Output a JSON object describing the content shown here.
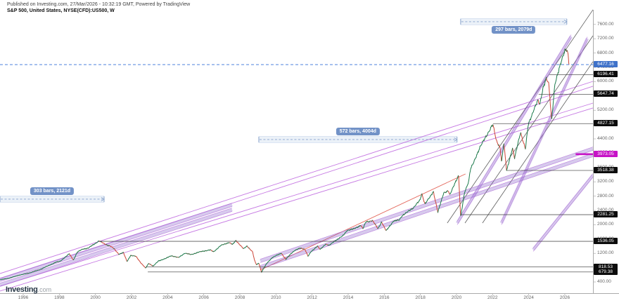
{
  "header": {
    "published_line": "Published on Investing.com, 27/Mar/2026 - 10:32:19 GMT, Powered by TradingView",
    "symbol_line": "S&P 500, United States, NYSE(CFD):US500, W"
  },
  "logo": {
    "brand": "Investing",
    "suffix": ".com"
  },
  "colors": {
    "current_badge_bg": "#3f72c9",
    "level_badge_bg": "#0c0c0c",
    "magenta": "#c613c6",
    "band_fill": "rgba(130,90,200,0.32)",
    "band_edge": "#b06fd8",
    "violet_line": "#c06ae0",
    "dark_line": "#4a4a4a",
    "red_line": "#e05548",
    "up": "#1b7a4b",
    "down": "#cc4437",
    "current_line": "#4d82dd",
    "measure_blue": "#8aa4cc",
    "measure_fill": "rgba(133,166,214,0.16)",
    "axis": "#aaaaaa",
    "ray": "#3a3a3a"
  },
  "chart_data": {
    "type": "line",
    "title": "S&P 500, United States, NYSE(CFD):US500, W",
    "symbol": "NYSE(CFD):US500",
    "interval": "W",
    "current_price": 6477.16,
    "x_axis": {
      "tick_years": [
        1996,
        1998,
        2000,
        2002,
        2004,
        2006,
        2008,
        2010,
        2012,
        2014,
        2016,
        2018,
        2020,
        2022,
        2024,
        2026
      ]
    },
    "y_axis": {
      "min": 400,
      "max": 7600,
      "tick_step": 400,
      "grid": false
    },
    "price_badges": [
      {
        "text": "6477.16",
        "price": 6477.16,
        "kind": "current"
      },
      {
        "text": "6196.41",
        "price": 6196.41,
        "kind": "level",
        "ray_start_year": 2025.15
      },
      {
        "text": "5647.74",
        "price": 5647.74,
        "kind": "level",
        "ray_start_year": 2024.55
      },
      {
        "text": "4827.15",
        "price": 4827.15,
        "kind": "level",
        "ray_start_year": 2022.02
      },
      {
        "text": "3973.05",
        "price": 3973.05,
        "kind": "magenta",
        "ray_start_year": 2026.6
      },
      {
        "text": "3518.38",
        "price": 3518.38,
        "kind": "level",
        "ray_start_year": 2022.8
      },
      {
        "text": "2281.25",
        "price": 2281.25,
        "kind": "level",
        "ray_start_year": 2020.2
      },
      {
        "text": "1536.05",
        "price": 1536.05,
        "kind": "level",
        "ray_start_year": 2000.3
      },
      {
        "text": "818.53",
        "price": 818.53,
        "kind": "level",
        "ray_start_year": 2002.8
      },
      {
        "text": "679.38",
        "price": 679.38,
        "kind": "level",
        "ray_start_year": 2002.9
      }
    ],
    "measures": [
      {
        "label": "303 bars, 2121d",
        "start_year": 1994.714,
        "end_year": 2000.48,
        "price": 2714,
        "label_side": "above"
      },
      {
        "label": "572 bars, 4004d",
        "start_year": 2009.05,
        "end_year": 2020.03,
        "price": 4381,
        "label_side": "above"
      },
      {
        "label": "297 bars, 2079d",
        "start_year": 2020.23,
        "end_year": 2026.11,
        "price": 7676,
        "label_side": "below"
      }
    ],
    "trendlines": [
      {
        "color": "violet",
        "x1": 1994.714,
        "p1": 635,
        "x2": 2027.56,
        "p2": 6008
      },
      {
        "color": "violet",
        "x1": 1994.714,
        "p1": 498,
        "x2": 2027.56,
        "p2": 5871
      },
      {
        "color": "violet",
        "x1": 1994.714,
        "p1": 282,
        "x2": 2027.56,
        "p2": 5400
      },
      {
        "color": "violet",
        "x1": 1994.714,
        "p1": 145,
        "x2": 2027.56,
        "p2": 5263
      },
      {
        "color": "red",
        "x1": 2009.13,
        "p1": 733,
        "x2": 2020.5,
        "p2": 3420
      },
      {
        "color": "dark",
        "x1": 2019.49,
        "p1": 2047,
        "x2": 2027.56,
        "p2": 8009
      },
      {
        "color": "dark",
        "x1": 2020.47,
        "p1": 2047,
        "x2": 2027.56,
        "p2": 7283
      },
      {
        "color": "dark",
        "x1": 2021.44,
        "p1": 2047,
        "x2": 2027.56,
        "p2": 6558
      }
    ],
    "channels": [
      {
        "x1": 1994.714,
        "p1": 459,
        "x2": 2007.57,
        "p2": 2557
      },
      {
        "x1": 1994.714,
        "p1": 322,
        "x2": 2007.57,
        "p2": 2420
      },
      {
        "x1": 2009.13,
        "p1": 988,
        "x2": 2027.56,
        "p2": 4126
      },
      {
        "x1": 2009.13,
        "p1": 812,
        "x2": 2027.56,
        "p2": 3949
      },
      {
        "x1": 2020.04,
        "p1": 2047,
        "x2": 2026.35,
        "p2": 7264
      },
      {
        "x1": 2022.49,
        "p1": 2047,
        "x2": 2027.25,
        "p2": 7205
      },
      {
        "x1": 2024.25,
        "p1": 1302,
        "x2": 2027.56,
        "p2": 3381
      }
    ],
    "series_anchors": [
      [
        1994.72,
        462
      ],
      [
        1995.2,
        505
      ],
      [
        1995.8,
        592
      ],
      [
        1996.3,
        645
      ],
      [
        1996.9,
        740
      ],
      [
        1997.4,
        855
      ],
      [
        1997.8,
        950
      ],
      [
        1998.05,
        980
      ],
      [
        1998.35,
        1105
      ],
      [
        1998.55,
        1185
      ],
      [
        1998.78,
        1015
      ],
      [
        1999.0,
        1235
      ],
      [
        1999.3,
        1320
      ],
      [
        1999.6,
        1345
      ],
      [
        1999.95,
        1465
      ],
      [
        2000.2,
        1545
      ],
      [
        2000.55,
        1455
      ],
      [
        2000.85,
        1395
      ],
      [
        2001.05,
        1320
      ],
      [
        2001.3,
        1175
      ],
      [
        2001.55,
        1220
      ],
      [
        2001.75,
        975
      ],
      [
        2001.95,
        1140
      ],
      [
        2002.25,
        1115
      ],
      [
        2002.5,
        945
      ],
      [
        2002.78,
        785
      ],
      [
        2002.95,
        920
      ],
      [
        2003.2,
        845
      ],
      [
        2003.5,
        990
      ],
      [
        2003.9,
        1058
      ],
      [
        2004.2,
        1135
      ],
      [
        2004.6,
        1080
      ],
      [
        2004.95,
        1205
      ],
      [
        2005.3,
        1165
      ],
      [
        2005.7,
        1230
      ],
      [
        2005.95,
        1260
      ],
      [
        2006.35,
        1295
      ],
      [
        2006.55,
        1245
      ],
      [
        2006.95,
        1420
      ],
      [
        2007.4,
        1505
      ],
      [
        2007.6,
        1445
      ],
      [
        2007.78,
        1560
      ],
      [
        2007.95,
        1470
      ],
      [
        2008.2,
        1325
      ],
      [
        2008.4,
        1405
      ],
      [
        2008.7,
        1245
      ],
      [
        2008.82,
        995
      ],
      [
        2008.92,
        880
      ],
      [
        2009.05,
        930
      ],
      [
        2009.2,
        678
      ],
      [
        2009.5,
        925
      ],
      [
        2009.8,
        1085
      ],
      [
        2010.05,
        1145
      ],
      [
        2010.3,
        1205
      ],
      [
        2010.55,
        1028
      ],
      [
        2010.8,
        1180
      ],
      [
        2011.05,
        1285
      ],
      [
        2011.35,
        1345
      ],
      [
        2011.6,
        1318
      ],
      [
        2011.78,
        1115
      ],
      [
        2011.95,
        1250
      ],
      [
        2012.3,
        1405
      ],
      [
        2012.45,
        1305
      ],
      [
        2012.75,
        1462
      ],
      [
        2012.95,
        1420
      ],
      [
        2013.3,
        1562
      ],
      [
        2013.7,
        1685
      ],
      [
        2013.95,
        1845
      ],
      [
        2014.3,
        1880
      ],
      [
        2014.7,
        1985
      ],
      [
        2014.82,
        1885
      ],
      [
        2014.98,
        2080
      ],
      [
        2015.35,
        2115
      ],
      [
        2015.65,
        1890
      ],
      [
        2015.85,
        2080
      ],
      [
        2016.1,
        1828
      ],
      [
        2016.5,
        2098
      ],
      [
        2016.82,
        2128
      ],
      [
        2016.98,
        2250
      ],
      [
        2017.3,
        2362
      ],
      [
        2017.6,
        2472
      ],
      [
        2017.98,
        2685
      ],
      [
        2018.08,
        2868
      ],
      [
        2018.25,
        2588
      ],
      [
        2018.55,
        2782
      ],
      [
        2018.72,
        2928
      ],
      [
        2018.97,
        2350
      ],
      [
        2019.3,
        2898
      ],
      [
        2019.55,
        2952
      ],
      [
        2019.63,
        2822
      ],
      [
        2019.97,
        3232
      ],
      [
        2020.12,
        3386
      ],
      [
        2020.23,
        2212
      ],
      [
        2020.45,
        2902
      ],
      [
        2020.68,
        3228
      ],
      [
        2020.77,
        3548
      ],
      [
        2020.97,
        3752
      ],
      [
        2021.3,
        4180
      ],
      [
        2021.6,
        4422
      ],
      [
        2021.95,
        4768
      ],
      [
        2022.02,
        4795
      ],
      [
        2022.2,
        4352
      ],
      [
        2022.42,
        4155
      ],
      [
        2022.5,
        3752
      ],
      [
        2022.62,
        4282
      ],
      [
        2022.78,
        3498
      ],
      [
        2022.95,
        3852
      ],
      [
        2023.1,
        4152
      ],
      [
        2023.22,
        3862
      ],
      [
        2023.55,
        4582
      ],
      [
        2023.82,
        4122
      ],
      [
        2023.97,
        4772
      ],
      [
        2024.3,
        5252
      ],
      [
        2024.5,
        5462
      ],
      [
        2024.62,
        5352
      ],
      [
        2024.8,
        5852
      ],
      [
        2024.97,
        6092
      ],
      [
        2025.1,
        5952
      ],
      [
        2025.18,
        5505
      ],
      [
        2025.27,
        4905
      ],
      [
        2025.45,
        5952
      ],
      [
        2025.6,
        6205
      ],
      [
        2025.75,
        6452
      ],
      [
        2025.9,
        6705
      ],
      [
        2026.0,
        6882
      ],
      [
        2026.1,
        6925
      ],
      [
        2026.17,
        6818
      ],
      [
        2026.23,
        6480
      ]
    ]
  }
}
